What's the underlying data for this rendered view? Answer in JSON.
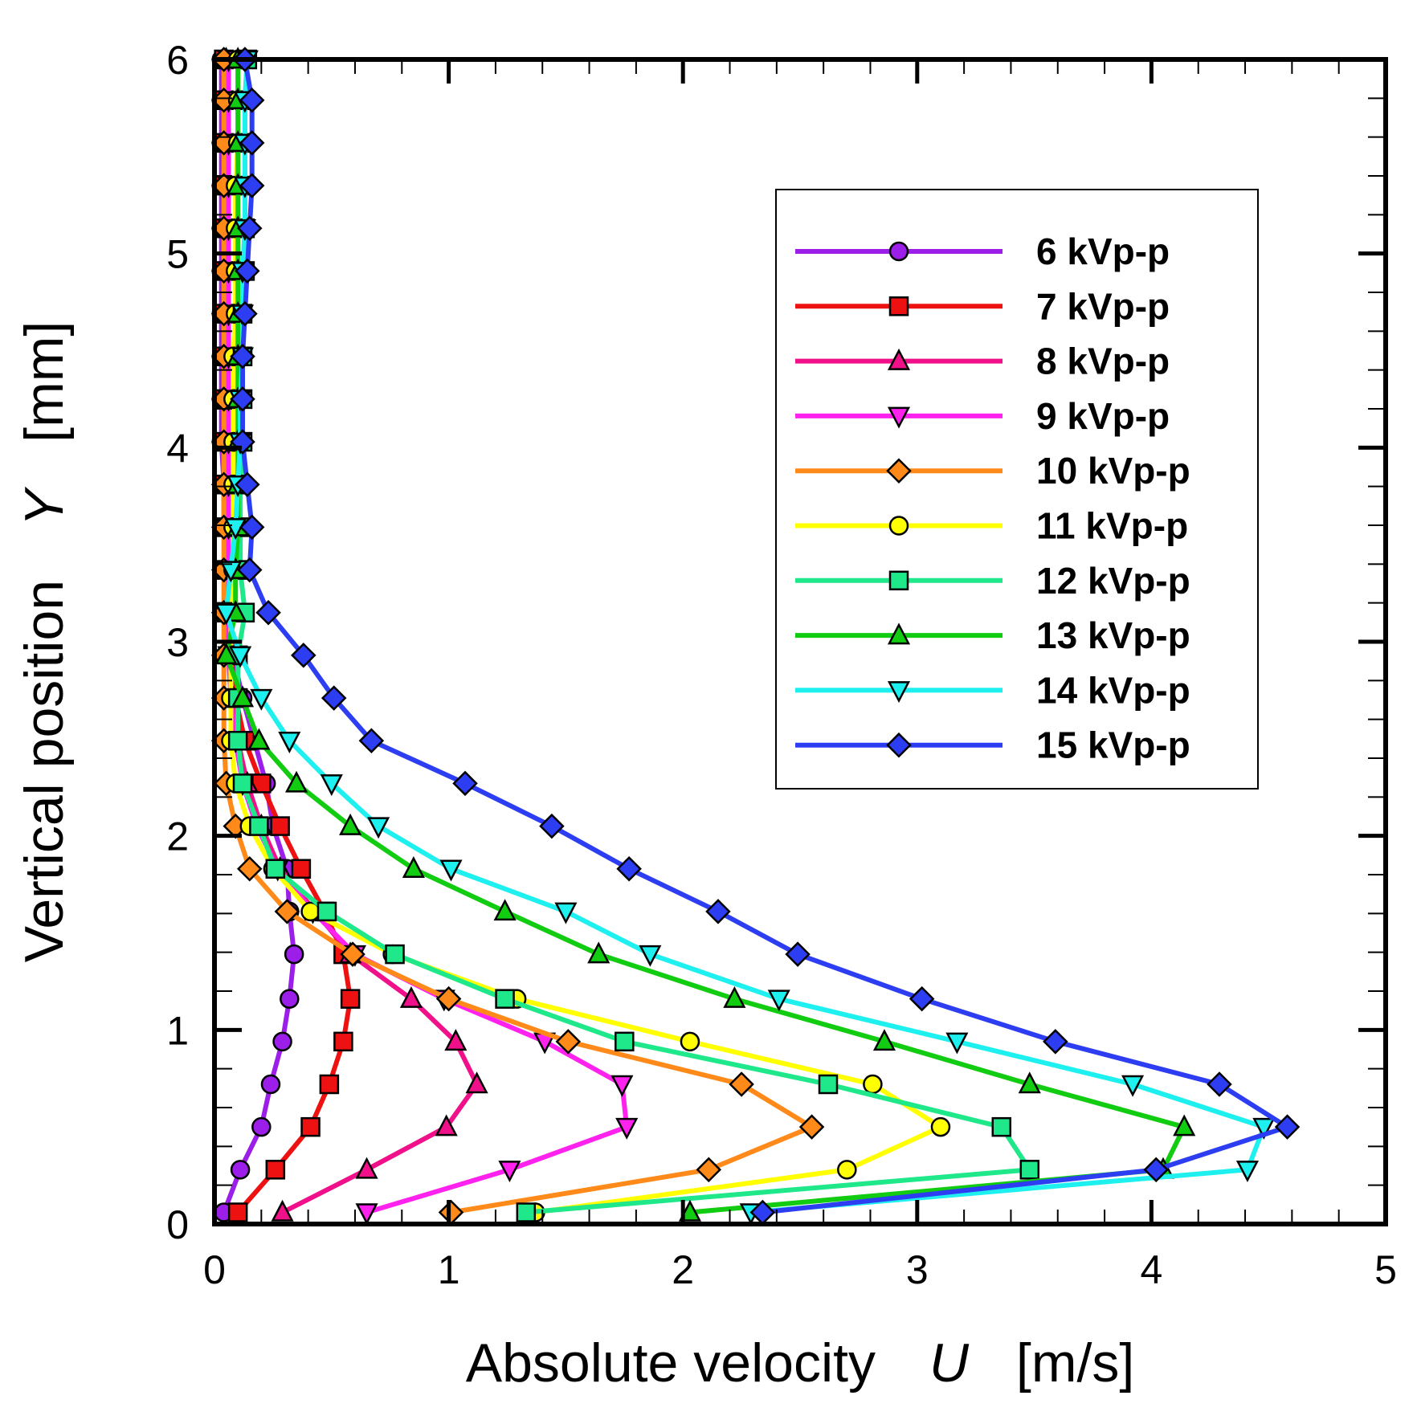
{
  "chart_data": {
    "type": "line",
    "title": "",
    "xlabel_text": "Absolute velocity",
    "xlabel_var": "U",
    "xlabel_unit": "[m/s]",
    "ylabel_text": "Vertical position",
    "ylabel_var": "Y",
    "ylabel_unit": "[mm]",
    "xlim": [
      0,
      5
    ],
    "ylim": [
      0,
      6
    ],
    "xticks": [
      0,
      1,
      2,
      3,
      4,
      5
    ],
    "yticks": [
      0,
      1,
      2,
      3,
      4,
      5,
      6
    ],
    "grid": false,
    "legend_position": "upper-right",
    "y": [
      0.06,
      0.28,
      0.5,
      0.72,
      0.94,
      1.16,
      1.39,
      1.61,
      1.83,
      2.05,
      2.27,
      2.49,
      2.71,
      2.93,
      3.15,
      3.37,
      3.59,
      3.81,
      4.03,
      4.25,
      4.47,
      4.69,
      4.91,
      5.13,
      5.35,
      5.57,
      5.79,
      6.0
    ],
    "series": [
      {
        "name": "6 kVp-p",
        "color": "#9b1fe8",
        "marker": "circle",
        "fill": "#9b1fe8",
        "x": [
          0.04,
          0.11,
          0.2,
          0.24,
          0.29,
          0.32,
          0.34,
          0.32,
          0.31,
          0.25,
          0.22,
          0.17,
          0.12,
          0.08,
          0.06,
          0.05,
          0.04,
          0.04,
          0.03,
          0.03,
          0.03,
          0.03,
          0.03,
          0.03,
          0.03,
          0.03,
          0.03,
          0.03
        ]
      },
      {
        "name": "7 kVp-p",
        "color": "#ee1111",
        "marker": "square",
        "fill": "#ee1111",
        "x": [
          0.1,
          0.26,
          0.41,
          0.49,
          0.55,
          0.58,
          0.55,
          0.47,
          0.37,
          0.28,
          0.2,
          0.13,
          0.09,
          0.07,
          0.05,
          0.05,
          0.05,
          0.04,
          0.04,
          0.04,
          0.04,
          0.04,
          0.04,
          0.04,
          0.04,
          0.04,
          0.04,
          0.04
        ]
      },
      {
        "name": "8 kVp-p",
        "color": "#f0108a",
        "marker": "triangle-up",
        "fill": "#f0108a",
        "x": [
          0.29,
          0.65,
          0.99,
          1.12,
          1.03,
          0.84,
          0.58,
          0.43,
          0.28,
          0.2,
          0.14,
          0.1,
          0.08,
          0.06,
          0.06,
          0.05,
          0.05,
          0.05,
          0.05,
          0.05,
          0.05,
          0.05,
          0.05,
          0.05,
          0.05,
          0.05,
          0.05,
          0.05
        ]
      },
      {
        "name": "9 kVp-p",
        "color": "#ff22ee",
        "marker": "triangle-down",
        "fill": "#ff22ee",
        "x": [
          0.65,
          1.26,
          1.76,
          1.74,
          1.41,
          0.98,
          0.6,
          0.42,
          0.27,
          0.18,
          0.12,
          0.09,
          0.07,
          0.06,
          0.06,
          0.06,
          0.06,
          0.06,
          0.06,
          0.06,
          0.06,
          0.06,
          0.06,
          0.06,
          0.06,
          0.06,
          0.06,
          0.06
        ]
      },
      {
        "name": "10 kVp-p",
        "color": "#ff8a1a",
        "marker": "diamond",
        "fill": "#ff8a1a",
        "x": [
          1.01,
          2.11,
          2.55,
          2.25,
          1.51,
          1.0,
          0.59,
          0.31,
          0.15,
          0.09,
          0.05,
          0.04,
          0.04,
          0.04,
          0.04,
          0.04,
          0.04,
          0.04,
          0.04,
          0.04,
          0.04,
          0.04,
          0.04,
          0.04,
          0.04,
          0.04,
          0.04,
          0.04
        ]
      },
      {
        "name": "11 kVp-p",
        "color": "#ffff00",
        "marker": "circle",
        "fill": "#ffff00",
        "x": [
          1.37,
          2.7,
          3.1,
          2.81,
          2.03,
          1.29,
          0.76,
          0.41,
          0.25,
          0.15,
          0.09,
          0.07,
          0.07,
          0.07,
          0.07,
          0.08,
          0.08,
          0.08,
          0.08,
          0.08,
          0.08,
          0.09,
          0.09,
          0.09,
          0.09,
          0.1,
          0.1,
          0.1
        ]
      },
      {
        "name": "12 kVp-p",
        "color": "#1ee88a",
        "marker": "square",
        "fill": "#1ee88a",
        "x": [
          1.33,
          3.48,
          3.36,
          2.62,
          1.75,
          1.24,
          0.77,
          0.48,
          0.26,
          0.19,
          0.12,
          0.1,
          0.1,
          0.1,
          0.13,
          0.11,
          0.11,
          0.11,
          0.12,
          0.12,
          0.12,
          0.12,
          0.13,
          0.13,
          0.13,
          0.13,
          0.13,
          0.14
        ]
      },
      {
        "name": "13 kVp-p",
        "color": "#11cc11",
        "marker": "triangle-up",
        "fill": "#11cc11",
        "x": [
          2.03,
          4.05,
          4.14,
          3.48,
          2.86,
          2.22,
          1.64,
          1.24,
          0.85,
          0.58,
          0.35,
          0.19,
          0.12,
          0.05,
          0.09,
          0.09,
          0.1,
          0.1,
          0.1,
          0.1,
          0.1,
          0.1,
          0.1,
          0.1,
          0.1,
          0.1,
          0.1,
          0.1
        ]
      },
      {
        "name": "14 kVp-p",
        "color": "#1ef0f0",
        "marker": "triangle-down",
        "fill": "#1ef0f0",
        "x": [
          2.29,
          4.41,
          4.48,
          3.92,
          3.17,
          2.41,
          1.86,
          1.5,
          1.01,
          0.7,
          0.5,
          0.32,
          0.2,
          0.11,
          0.05,
          0.07,
          0.09,
          0.1,
          0.11,
          0.11,
          0.12,
          0.12,
          0.12,
          0.13,
          0.13,
          0.13,
          0.13,
          0.14
        ]
      },
      {
        "name": "15 kVp-p",
        "color": "#2d3ef2",
        "marker": "diamond",
        "fill": "#2d3ef2",
        "x": [
          2.34,
          4.02,
          4.58,
          4.29,
          3.59,
          3.02,
          2.49,
          2.15,
          1.77,
          1.44,
          1.07,
          0.67,
          0.51,
          0.38,
          0.23,
          0.15,
          0.16,
          0.14,
          0.12,
          0.12,
          0.12,
          0.13,
          0.14,
          0.15,
          0.16,
          0.16,
          0.16,
          0.13
        ]
      }
    ]
  }
}
